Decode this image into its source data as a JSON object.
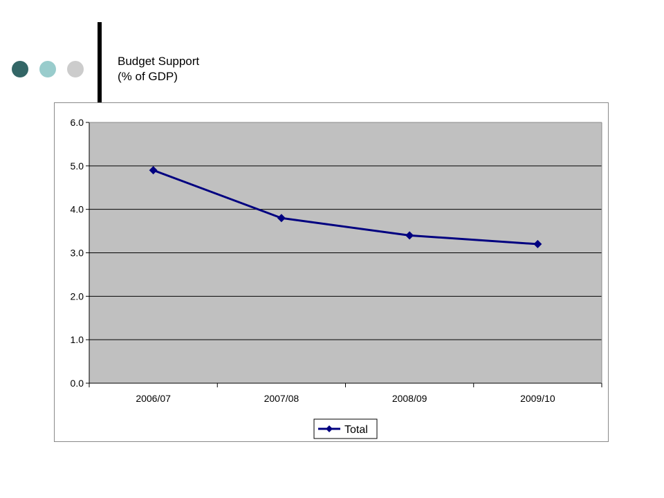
{
  "slide": {
    "title_line1": "Budget Support",
    "title_line2": "(% of GDP)",
    "decor_colors": [
      "#336666",
      "#99cccc",
      "#cccccc"
    ]
  },
  "chart_data": {
    "type": "line",
    "categories": [
      "2006/07",
      "2007/08",
      "2008/09",
      "2009/10"
    ],
    "series": [
      {
        "name": "Total",
        "values": [
          4.9,
          3.8,
          3.4,
          3.2
        ],
        "color": "#000080",
        "marker": "diamond"
      }
    ],
    "ylim": [
      0,
      6
    ],
    "yticks": [
      "0.0",
      "1.0",
      "2.0",
      "3.0",
      "4.0",
      "5.0",
      "6.0"
    ],
    "grid": true,
    "plot_background": "#c0c0c0",
    "legend_position": "bottom"
  }
}
